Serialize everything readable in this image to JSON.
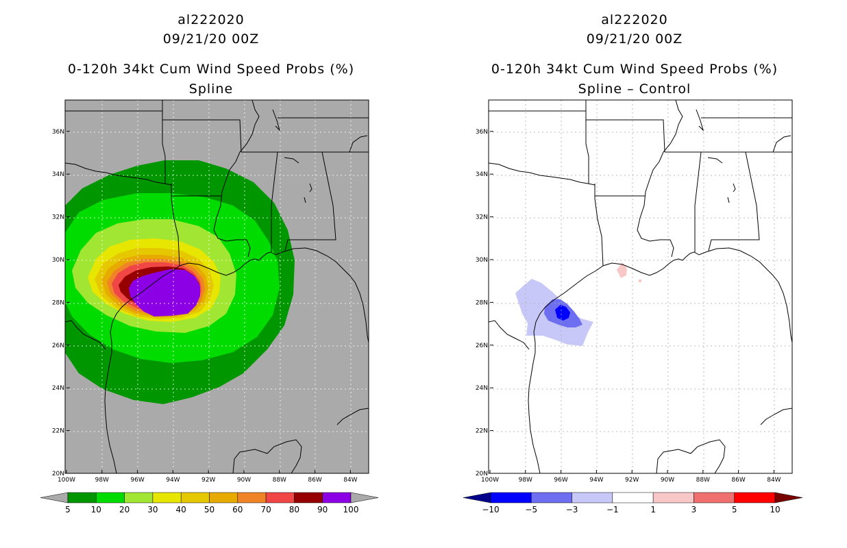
{
  "left_panel": {
    "storm_id": "al222020",
    "datetime": "09/21/20 00Z",
    "product": "0-120h 34kt Cum Wind Speed Probs (%)",
    "subtitle": "Spline",
    "colorbar": {
      "labels": [
        "5",
        "10",
        "20",
        "30",
        "40",
        "50",
        "60",
        "70",
        "80",
        "90",
        "100"
      ],
      "colors": [
        "#009600",
        "#00dc00",
        "#a0e632",
        "#e6e600",
        "#e6c800",
        "#e6aa00",
        "#f08228",
        "#f04646",
        "#960000",
        "#8c00e6"
      ],
      "under_color": "#aaaaaa",
      "over_color": "#aaaaaa"
    }
  },
  "right_panel": {
    "storm_id": "al222020",
    "datetime": "09/21/20 00Z",
    "product": "0-120h 34kt Cum Wind Speed Probs (%)",
    "subtitle": "Spline – Control",
    "colorbar": {
      "labels": [
        "−10",
        "−5",
        "−3",
        "−1",
        "1",
        "3",
        "5",
        "10"
      ],
      "colors": [
        "#0000ff",
        "#6e6ef0",
        "#c8c8f8",
        "#ffffff",
        "#f8c8c8",
        "#f07070",
        "#ff0000"
      ],
      "under_color": "#00008c",
      "over_color": "#780000"
    }
  },
  "axes": {
    "lon_labels": [
      "100W",
      "98W",
      "96W",
      "94W",
      "92W",
      "90W",
      "88W",
      "86W",
      "84W"
    ],
    "lat_labels": [
      "20N",
      "22N",
      "24N",
      "26N",
      "28N",
      "30N",
      "32N",
      "34N",
      "36N"
    ]
  },
  "colors": {
    "map_bg_left": "#aaaaaa",
    "map_bg_right": "#ffffff"
  }
}
